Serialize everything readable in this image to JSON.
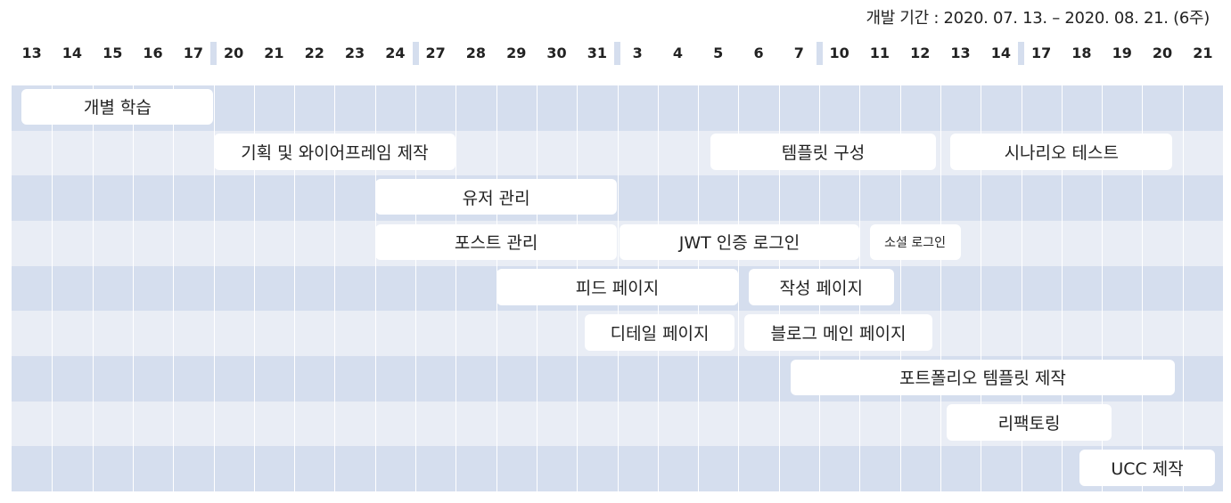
{
  "period_label": "개발 기간 : 2020. 07. 13. – 2020. 08. 21. (6주)",
  "colors": {
    "row_odd": "#d5deee",
    "row_even": "#e9edf5",
    "bar": "#ffffff",
    "text": "#222222"
  },
  "chart_data": {
    "type": "gantt",
    "subtitle": "개발 기간 : 2020. 07. 13. – 2020. 08. 21. (6주)",
    "days": [
      "13",
      "14",
      "15",
      "16",
      "17",
      "20",
      "21",
      "22",
      "23",
      "24",
      "27",
      "28",
      "29",
      "30",
      "31",
      "3",
      "4",
      "5",
      "6",
      "7",
      "10",
      "11",
      "12",
      "13",
      "14",
      "17",
      "18",
      "19",
      "20",
      "21"
    ],
    "week_breaks_after_index": [
      4,
      9,
      14,
      19,
      24
    ],
    "tasks": [
      {
        "name": "개별 학습",
        "row": 0,
        "start": 0.25,
        "end": 5.0
      },
      {
        "name": "기획 및 와이어프레임 제작",
        "row": 1,
        "start": 5.0,
        "end": 11.0
      },
      {
        "name": "템플릿 구성",
        "row": 1,
        "start": 17.3,
        "end": 22.9
      },
      {
        "name": "시나리오 테스트",
        "row": 1,
        "start": 23.25,
        "end": 28.75
      },
      {
        "name": "유저 관리",
        "row": 2,
        "start": 9.0,
        "end": 15.0
      },
      {
        "name": "포스트 관리",
        "row": 3,
        "start": 9.0,
        "end": 15.0
      },
      {
        "name": "JWT 인증 로그인",
        "row": 3,
        "start": 15.05,
        "end": 21.0
      },
      {
        "name": "소셜 로그인",
        "row": 3,
        "start": 21.25,
        "end": 23.5
      },
      {
        "name": "피드 페이지",
        "row": 4,
        "start": 12.0,
        "end": 18.0
      },
      {
        "name": "작성 페이지",
        "row": 4,
        "start": 18.25,
        "end": 21.85
      },
      {
        "name": "디테일 페이지",
        "row": 5,
        "start": 14.2,
        "end": 17.9
      },
      {
        "name": "블로그 메인 페이지",
        "row": 5,
        "start": 18.15,
        "end": 22.8
      },
      {
        "name": "포트폴리오 템플릿 제작",
        "row": 6,
        "start": 19.3,
        "end": 28.8
      },
      {
        "name": "리팩토링",
        "row": 7,
        "start": 23.15,
        "end": 27.25
      },
      {
        "name": "UCC 제작",
        "row": 8,
        "start": 26.45,
        "end": 29.8
      }
    ]
  }
}
